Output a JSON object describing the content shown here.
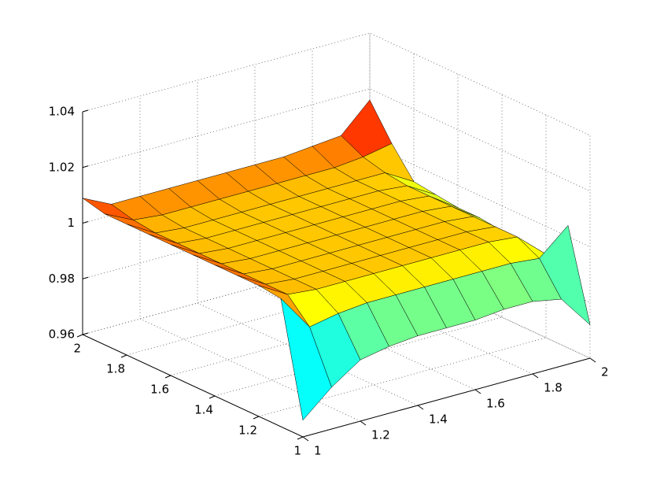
{
  "chart_data": {
    "type": "surface",
    "colormap": "jet",
    "grid": true,
    "x": [
      1,
      1.1,
      1.2,
      1.3,
      1.4,
      1.5,
      1.6,
      1.7,
      1.8,
      1.9,
      2
    ],
    "y": [
      1,
      1.1,
      1.2,
      1.3,
      1.4,
      1.5,
      1.6,
      1.7,
      1.8,
      1.9,
      2
    ],
    "z": [
      [
        0.966,
        0.975,
        0.982,
        0.984,
        0.985,
        0.985,
        0.985,
        0.986,
        0.986,
        0.984,
        0.972
      ],
      [
        1.006,
        0.993,
        0.995,
        0.996,
        0.996,
        0.996,
        0.996,
        0.996,
        0.996,
        0.995,
        1.004
      ],
      [
        1.007,
        1.001,
        1.0,
        1.0,
        1.0,
        1.0,
        1.0,
        1.0,
        1.0,
        0.999,
        0.99
      ],
      [
        1.007,
        1.001,
        1.0,
        1.0,
        1.0,
        1.0,
        1.0,
        1.0,
        1.0,
        0.999,
        0.991
      ],
      [
        1.007,
        1.001,
        1.0,
        1.0,
        1.0,
        1.0,
        1.0,
        1.0,
        1.0,
        0.999,
        0.991
      ],
      [
        1.007,
        1.001,
        1.0,
        1.0,
        1.0,
        1.0,
        1.0,
        1.0,
        1.0,
        0.999,
        0.992
      ],
      [
        1.007,
        1.001,
        1.0,
        1.0,
        1.0,
        1.0,
        1.0,
        1.0,
        1.0,
        0.999,
        0.992
      ],
      [
        1.007,
        1.001,
        1.0,
        1.0,
        1.0,
        1.0,
        1.0,
        1.0,
        1.0,
        0.999,
        0.993
      ],
      [
        1.007,
        1.001,
        1.0,
        1.0,
        1.0,
        1.0,
        1.0,
        1.0,
        1.0,
        1.0,
        0.994
      ],
      [
        1.007,
        1.002,
        1.001,
        1.001,
        1.001,
        1.001,
        1.001,
        1.001,
        1.001,
        1.002,
        1.004
      ],
      [
        1.009,
        1.004,
        1.004,
        1.004,
        1.004,
        1.004,
        1.004,
        1.004,
        1.005,
        1.006,
        1.016
      ]
    ],
    "xlim": [
      1,
      2
    ],
    "ylim": [
      1,
      2
    ],
    "zlim": [
      0.96,
      1.04
    ],
    "xticks": [
      1,
      1.2,
      1.4,
      1.6,
      1.8,
      2
    ],
    "yticks": [
      1,
      1.2,
      1.4,
      1.6,
      1.8,
      2
    ],
    "zticks": [
      0.96,
      0.98,
      1,
      1.02,
      1.04
    ]
  }
}
